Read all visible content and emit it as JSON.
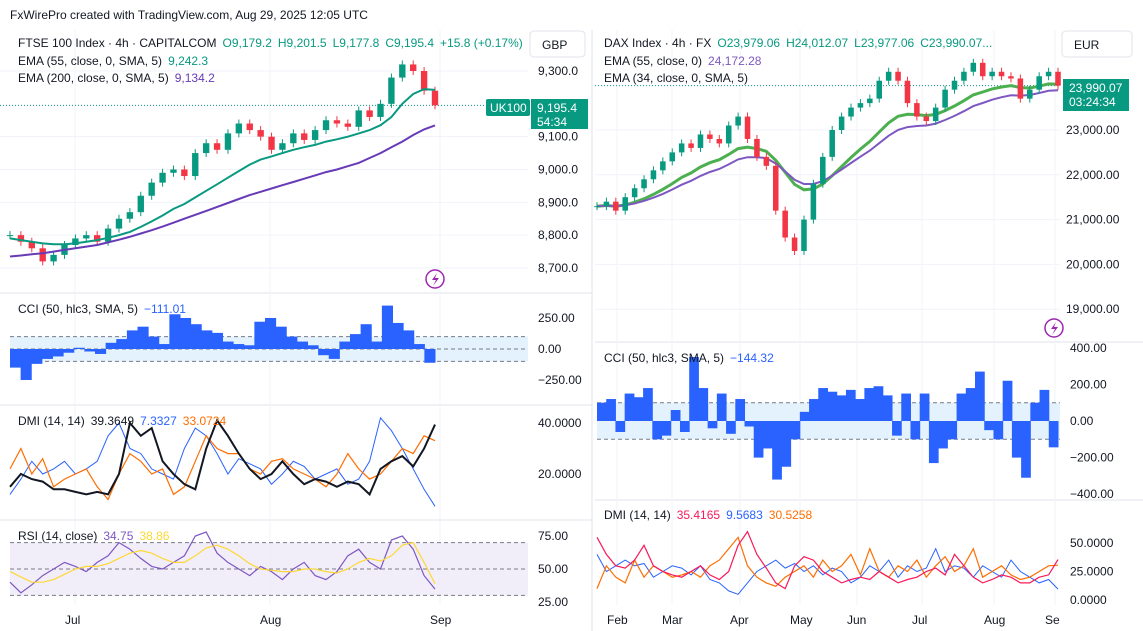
{
  "header": {
    "title": "FxWirePro created with TradingView.com, Aug 29, 2025 12:05 UTC"
  },
  "colors": {
    "up": "#089981",
    "down": "#f23645",
    "ema_teal": "#089981",
    "ema_purple": "#673ab7",
    "dax_green": "#4caf50",
    "dax_purple": "#7e57c2",
    "cci": "#2962ff",
    "band": "#e3f2fd",
    "rsi": "#7e57c2",
    "rsi_ma": "#fdd835",
    "adx_black": "#131722",
    "adx_red": "#f7195a",
    "di_plus": "#2962ff",
    "di_minus": "#ff6d00"
  },
  "chart_data": [
    {
      "type": "line",
      "title": "FTSE 100 Index · 4h · CAPITALCOM",
      "currency": "GBP",
      "ohlc": {
        "o": "O9,179.2",
        "h": "H9,201.5",
        "l": "L9,177.8",
        "c": "C9,195.4",
        "chg": "+15.8 (+0.17%)"
      },
      "symbol_badge": "UK100",
      "last_price": "9,195.4",
      "countdown": "54:34",
      "ema1_label": "EMA (55, close, 0, SMA, 5)",
      "ema1_value": "9,242.3",
      "ema2_label": "EMA (200, close, 0, SMA, 5)",
      "ema2_value": "9,134.2",
      "yticks": [
        "9,300.0",
        "9,100.0",
        "9,000.0",
        "8,900.0",
        "8,800.0",
        "8,700.0"
      ],
      "ytick_values": [
        9300,
        9100,
        9000,
        8900,
        8800,
        8700
      ],
      "xticks": [
        "Jul",
        "Aug",
        "Sep"
      ],
      "close": [
        8800,
        8780,
        8760,
        8720,
        8740,
        8770,
        8790,
        8800,
        8780,
        8820,
        8850,
        8870,
        8920,
        8960,
        8990,
        9000,
        8980,
        9050,
        9080,
        9060,
        9110,
        9140,
        9120,
        9100,
        9060,
        9080,
        9110,
        9090,
        9120,
        9150,
        9140,
        9130,
        9180,
        9160,
        9200,
        9280,
        9320,
        9300,
        9240,
        9195.4
      ],
      "ema55": [
        8790,
        8785,
        8780,
        8775,
        8772,
        8772,
        8775,
        8780,
        8785,
        8792,
        8800,
        8810,
        8825,
        8842,
        8860,
        8880,
        8895,
        8915,
        8935,
        8955,
        8975,
        8995,
        9015,
        9030,
        9040,
        9050,
        9060,
        9068,
        9075,
        9085,
        9092,
        9100,
        9110,
        9120,
        9135,
        9160,
        9200,
        9230,
        9245,
        9242.3
      ],
      "ema200": [
        8735,
        8738,
        8742,
        8745,
        8750,
        8755,
        8760,
        8765,
        8770,
        8778,
        8786,
        8795,
        8805,
        8815,
        8826,
        8838,
        8850,
        8862,
        8874,
        8886,
        8898,
        8910,
        8922,
        8932,
        8942,
        8952,
        8962,
        8972,
        8982,
        8992,
        9000,
        9010,
        9020,
        9035,
        9050,
        9068,
        9085,
        9105,
        9122,
        9134.2
      ],
      "cci": {
        "label": "CCI (50, hlc3, SMA, 5)",
        "value": "−111.01",
        "yticks": [
          "250.00",
          "0.00",
          "−250.00"
        ],
        "values": [
          -150,
          -250,
          -120,
          -80,
          -60,
          -30,
          10,
          -20,
          -40,
          50,
          80,
          150,
          180,
          100,
          40,
          280,
          250,
          200,
          150,
          130,
          60,
          40,
          30,
          220,
          250,
          180,
          100,
          60,
          30,
          -50,
          -80,
          60,
          120,
          200,
          60,
          350,
          210,
          150,
          40,
          -111
        ]
      },
      "dmi": {
        "label": "DMI (14, 14)",
        "adx": "39.3649",
        "di_plus": "7.3327",
        "di_minus": "33.0724",
        "yticks": [
          "40.0000",
          "20.0000"
        ],
        "adx_values": [
          15,
          20,
          18,
          17,
          14,
          14,
          13,
          12,
          13,
          12,
          20,
          40,
          35,
          38,
          25,
          20,
          16,
          14,
          30,
          41,
          35,
          28,
          22,
          18,
          20,
          25,
          20,
          16,
          18,
          17,
          15,
          17,
          16,
          12,
          22,
          25,
          27,
          23,
          30,
          39.36
        ],
        "di_plus_values": [
          12,
          18,
          25,
          20,
          22,
          25,
          20,
          22,
          25,
          35,
          40,
          30,
          28,
          22,
          20,
          18,
          30,
          38,
          35,
          28,
          20,
          26,
          24,
          22,
          16,
          20,
          25,
          23,
          18,
          20,
          22,
          16,
          18,
          25,
          42,
          37,
          30,
          22,
          14,
          7.33
        ],
        "di_minus_values": [
          22,
          30,
          20,
          26,
          15,
          18,
          20,
          22,
          15,
          10,
          20,
          28,
          25,
          20,
          22,
          12,
          15,
          25,
          35,
          30,
          28,
          28,
          22,
          20,
          25,
          26,
          22,
          20,
          18,
          15,
          20,
          28,
          22,
          18,
          20,
          25,
          30,
          28,
          35,
          33.07
        ]
      },
      "rsi": {
        "label": "RSI (14, close)",
        "value": "34.75",
        "ma": "38.86",
        "yticks": [
          "75.00",
          "50.00",
          "25.00"
        ],
        "values": [
          40,
          32,
          38,
          45,
          50,
          55,
          52,
          48,
          55,
          60,
          70,
          65,
          58,
          52,
          50,
          55,
          60,
          75,
          78,
          62,
          55,
          50,
          45,
          52,
          48,
          42,
          50,
          55,
          45,
          42,
          48,
          60,
          65,
          55,
          50,
          72,
          75,
          65,
          45,
          34.75
        ],
        "ma_values": [
          48,
          44,
          40,
          40,
          42,
          46,
          50,
          52,
          52,
          54,
          58,
          62,
          64,
          62,
          58,
          55,
          55,
          60,
          66,
          68,
          65,
          60,
          54,
          50,
          49,
          48,
          48,
          50,
          50,
          48,
          47,
          50,
          55,
          58,
          56,
          60,
          68,
          70,
          55,
          38.86
        ]
      }
    },
    {
      "type": "line",
      "title": "DAX Index · 4h · FX",
      "currency": "EUR",
      "ohlc": {
        "o": "O23,979.06",
        "h": "H24,012.07",
        "l": "L23,977.06",
        "c": "C23,990.07..."
      },
      "last_price": "23,990.07",
      "countdown": "03:24:34",
      "ema1_label": "EMA (55, close, 0)",
      "ema1_value": "24,172.28",
      "ema2_label": "EMA (34, close, 0, SMA, 5)",
      "yticks": [
        "23,000.00",
        "22,000.00",
        "21,000.00",
        "20,000.00",
        "19,000.00"
      ],
      "ytick_values": [
        23000,
        22000,
        21000,
        20000,
        19000
      ],
      "xticks": [
        "Feb",
        "Mar",
        "Apr",
        "May",
        "Jun",
        "Jul",
        "Aug",
        "Se"
      ],
      "close": [
        21300,
        21400,
        21200,
        21500,
        21700,
        21900,
        22100,
        22300,
        22500,
        22700,
        22600,
        22900,
        22800,
        22700,
        23100,
        23300,
        22800,
        22400,
        22200,
        21200,
        20600,
        20300,
        21000,
        21800,
        22400,
        23000,
        23300,
        23500,
        23600,
        23700,
        24100,
        24300,
        24100,
        23600,
        23300,
        23200,
        23500,
        23900,
        24100,
        24300,
        24500,
        24200,
        24300,
        24200,
        24150,
        23700,
        23900,
        24200,
        24300,
        23990.07
      ],
      "cci": {
        "label": "CCI (50, hlc3, SMA, 5)",
        "value": "−144.32",
        "yticks": [
          "400.00",
          "200.00",
          "0.00",
          "−200.00",
          "−400.00"
        ],
        "values": [
          100,
          120,
          -60,
          150,
          130,
          180,
          -100,
          -80,
          60,
          -60,
          350,
          180,
          -40,
          150,
          -70,
          120,
          -30,
          -200,
          -150,
          -320,
          -250,
          -100,
          50,
          120,
          180,
          160,
          140,
          170,
          120,
          180,
          190,
          140,
          -80,
          150,
          -100,
          150,
          -230,
          -150,
          -100,
          150,
          180,
          270,
          -50,
          -100,
          220,
          -200,
          -310,
          100,
          170,
          -144
        ]
      },
      "dmi": {
        "label": "DMI (14, 14)",
        "adx": "35.4165",
        "di_plus": "9.5683",
        "di_minus": "30.5258",
        "yticks": [
          "50.0000",
          "25.0000",
          "0.0000"
        ],
        "adx_values": [
          55,
          40,
          30,
          28,
          35,
          48,
          30,
          25,
          22,
          20,
          25,
          30,
          22,
          18,
          25,
          48,
          60,
          40,
          28,
          15,
          10,
          30,
          38,
          35,
          25,
          20,
          15,
          18,
          20,
          18,
          25,
          20,
          15,
          18,
          20,
          25,
          28,
          22,
          40,
          30,
          20,
          15,
          18,
          22,
          20,
          15,
          15,
          20,
          22,
          35.4
        ],
        "di_plus_values": [
          40,
          25,
          30,
          35,
          30,
          32,
          20,
          25,
          30,
          28,
          22,
          30,
          18,
          15,
          8,
          5,
          15,
          25,
          30,
          35,
          28,
          32,
          25,
          30,
          22,
          28,
          25,
          15,
          20,
          30,
          25,
          35,
          20,
          30,
          25,
          28,
          45,
          25,
          30,
          28,
          20,
          30,
          25,
          20,
          35,
          25,
          20,
          15,
          18,
          9.57
        ],
        "di_minus_values": [
          10,
          30,
          20,
          15,
          35,
          20,
          30,
          25,
          20,
          22,
          25,
          20,
          30,
          35,
          45,
          55,
          30,
          20,
          15,
          12,
          20,
          25,
          30,
          20,
          35,
          25,
          30,
          40,
          22,
          45,
          25,
          20,
          30,
          25,
          35,
          20,
          30,
          38,
          25,
          30,
          45,
          20,
          25,
          30,
          22,
          18,
          20,
          25,
          30,
          30.5
        ]
      }
    }
  ]
}
